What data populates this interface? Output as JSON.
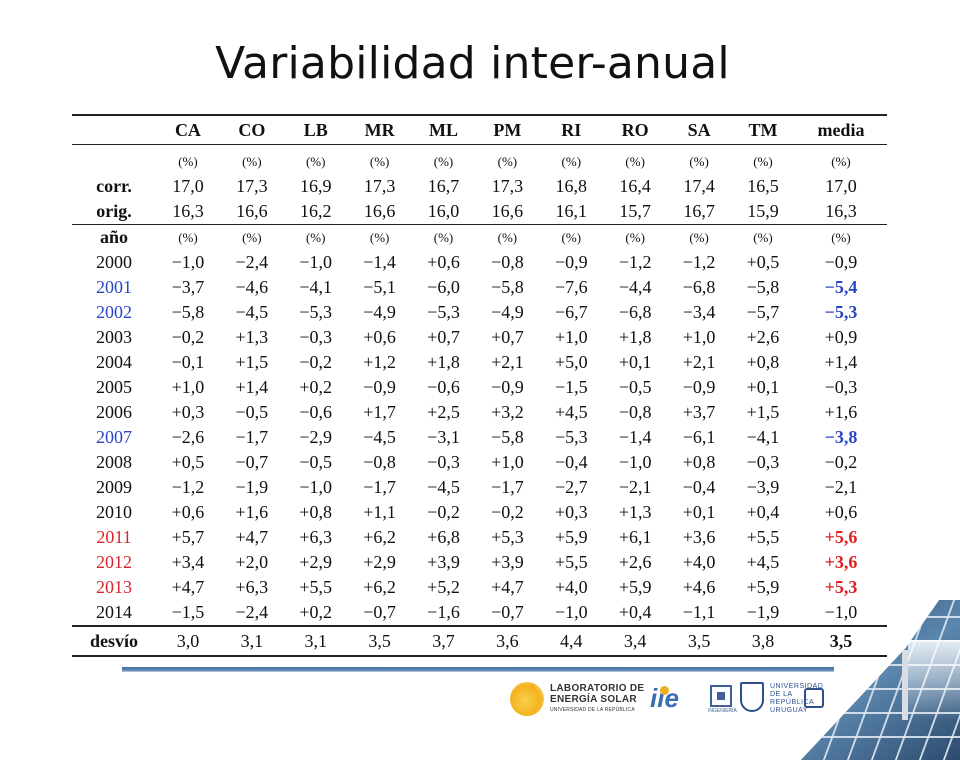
{
  "title": "Variabilidad inter-anual",
  "table": {
    "columns": [
      "CA",
      "CO",
      "LB",
      "MR",
      "ML",
      "PM",
      "RI",
      "RO",
      "SA",
      "TM",
      "media"
    ],
    "unit": "(%)",
    "summary_rows": [
      {
        "label": "corr.",
        "values": [
          "17,0",
          "17,3",
          "16,9",
          "17,3",
          "16,7",
          "17,3",
          "16,8",
          "16,4",
          "17,4",
          "16,5",
          "17,0"
        ]
      },
      {
        "label": "orig.",
        "values": [
          "16,3",
          "16,6",
          "16,2",
          "16,6",
          "16,0",
          "16,6",
          "16,1",
          "15,7",
          "16,7",
          "15,9",
          "16,3"
        ]
      }
    ],
    "year_header": "año",
    "years": [
      {
        "year": "2000",
        "hl": "",
        "values": [
          "−1,0",
          "−2,4",
          "−1,0",
          "−1,4",
          "+0,6",
          "−0,8",
          "−0,9",
          "−1,2",
          "−1,2",
          "+0,5",
          "−0,9"
        ]
      },
      {
        "year": "2001",
        "hl": "blue",
        "values": [
          "−3,7",
          "−4,6",
          "−4,1",
          "−5,1",
          "−6,0",
          "−5,8",
          "−7,6",
          "−4,4",
          "−6,8",
          "−5,8",
          "−5,4"
        ]
      },
      {
        "year": "2002",
        "hl": "blue",
        "values": [
          "−5,8",
          "−4,5",
          "−5,3",
          "−4,9",
          "−5,3",
          "−4,9",
          "−6,7",
          "−6,8",
          "−3,4",
          "−5,7",
          "−5,3"
        ]
      },
      {
        "year": "2003",
        "hl": "",
        "values": [
          "−0,2",
          "+1,3",
          "−0,3",
          "+0,6",
          "+0,7",
          "+0,7",
          "+1,0",
          "+1,8",
          "+1,0",
          "+2,6",
          "+0,9"
        ]
      },
      {
        "year": "2004",
        "hl": "",
        "values": [
          "−0,1",
          "+1,5",
          "−0,2",
          "+1,2",
          "+1,8",
          "+2,1",
          "+5,0",
          "+0,1",
          "+2,1",
          "+0,8",
          "+1,4"
        ]
      },
      {
        "year": "2005",
        "hl": "",
        "values": [
          "+1,0",
          "+1,4",
          "+0,2",
          "−0,9",
          "−0,6",
          "−0,9",
          "−1,5",
          "−0,5",
          "−0,9",
          "+0,1",
          "−0,3"
        ]
      },
      {
        "year": "2006",
        "hl": "",
        "values": [
          "+0,3",
          "−0,5",
          "−0,6",
          "+1,7",
          "+2,5",
          "+3,2",
          "+4,5",
          "−0,8",
          "+3,7",
          "+1,5",
          "+1,6"
        ]
      },
      {
        "year": "2007",
        "hl": "blue",
        "values": [
          "−2,6",
          "−1,7",
          "−2,9",
          "−4,5",
          "−3,1",
          "−5,8",
          "−5,3",
          "−1,4",
          "−6,1",
          "−4,1",
          "−3,8"
        ]
      },
      {
        "year": "2008",
        "hl": "",
        "values": [
          "+0,5",
          "−0,7",
          "−0,5",
          "−0,8",
          "−0,3",
          "+1,0",
          "−0,4",
          "−1,0",
          "+0,8",
          "−0,3",
          "−0,2"
        ]
      },
      {
        "year": "2009",
        "hl": "",
        "values": [
          "−1,2",
          "−1,9",
          "−1,0",
          "−1,7",
          "−4,5",
          "−1,7",
          "−2,7",
          "−2,1",
          "−0,4",
          "−3,9",
          "−2,1"
        ]
      },
      {
        "year": "2010",
        "hl": "",
        "values": [
          "+0,6",
          "+1,6",
          "+0,8",
          "+1,1",
          "−0,2",
          "−0,2",
          "+0,3",
          "+1,3",
          "+0,1",
          "+0,4",
          "+0,6"
        ]
      },
      {
        "year": "2011",
        "hl": "red",
        "values": [
          "+5,7",
          "+4,7",
          "+6,3",
          "+6,2",
          "+6,8",
          "+5,3",
          "+5,9",
          "+6,1",
          "+3,6",
          "+5,5",
          "+5,6"
        ]
      },
      {
        "year": "2012",
        "hl": "red",
        "values": [
          "+3,4",
          "+2,0",
          "+2,9",
          "+2,9",
          "+3,9",
          "+3,9",
          "+5,5",
          "+2,6",
          "+4,0",
          "+4,5",
          "+3,6"
        ]
      },
      {
        "year": "2013",
        "hl": "red",
        "values": [
          "+4,7",
          "+6,3",
          "+5,5",
          "+6,2",
          "+5,2",
          "+4,7",
          "+4,0",
          "+5,9",
          "+4,6",
          "+5,9",
          "+5,3"
        ]
      },
      {
        "year": "2014",
        "hl": "",
        "values": [
          "−1,5",
          "−2,4",
          "+0,2",
          "−0,7",
          "−1,6",
          "−0,7",
          "−1,0",
          "+0,4",
          "−1,1",
          "−1,9",
          "−1,0"
        ]
      }
    ],
    "deviation": {
      "label": "desvío",
      "values": [
        "3,0",
        "3,1",
        "3,1",
        "3,5",
        "3,7",
        "3,6",
        "4,4",
        "3,4",
        "3,5",
        "3,8",
        "3,5"
      ]
    }
  },
  "footer": {
    "lab_line1": "LABORATORIO DE",
    "lab_line2": "ENERGÍA SOLAR",
    "lab_line3": "UNIVERSIDAD DE LA REPÚBLICA",
    "iie": "iie",
    "fing": "INGENIERÍA",
    "udelar_line1": "UNIVERSIDAD",
    "udelar_line2": "DE LA REPÚBLICA",
    "udelar_line3": "URUGUAY"
  },
  "colors": {
    "highlight_blue": "#2a46c8",
    "highlight_red": "#d9242b",
    "rule": "#3f6f9e"
  }
}
